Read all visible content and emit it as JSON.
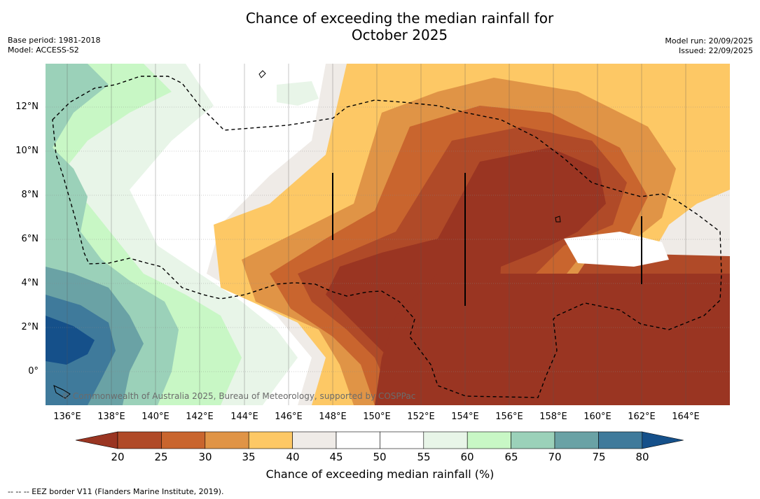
{
  "title_line1": "Chance of exceeding the median rainfall for",
  "title_line2": "October 2025",
  "base_period": "Base period: 1981-2018",
  "model": "Model: ACCESS-S2",
  "model_run": "Model run: 20/09/2025",
  "issued": "Issued: 22/09/2025",
  "copyright": "© Commonwealth of Australia 2025, Bureau of Meteorology, supported by COSPPac",
  "footnote": "-- -- -- EEZ border V11 (Flanders Marine Institute, 2019).",
  "map": {
    "lat_labels": [
      "12°N",
      "10°N",
      "8°N",
      "6°N",
      "4°N",
      "2°N",
      "0°"
    ],
    "lon_labels": [
      "136°E",
      "138°E",
      "140°E",
      "142°E",
      "144°E",
      "146°E",
      "148°E",
      "150°E",
      "152°E",
      "154°E",
      "156°E",
      "158°E",
      "160°E",
      "162°E",
      "164°E"
    ]
  },
  "colorbar": {
    "label": "Chance of exceeding median rainfall (%)",
    "ticks": [
      "20",
      "25",
      "30",
      "35",
      "40",
      "45",
      "50",
      "55",
      "60",
      "65",
      "70",
      "75",
      "80"
    ],
    "colors": [
      "#9a3522",
      "#b04a28",
      "#c9652e",
      "#e09446",
      "#fdc865",
      "#efebe7",
      "#ffffff",
      "#ffffff",
      "#e8f5e8",
      "#c8f7c5",
      "#9bd1b9",
      "#6aa2a5",
      "#3f7a9b",
      "#15508a"
    ]
  }
}
